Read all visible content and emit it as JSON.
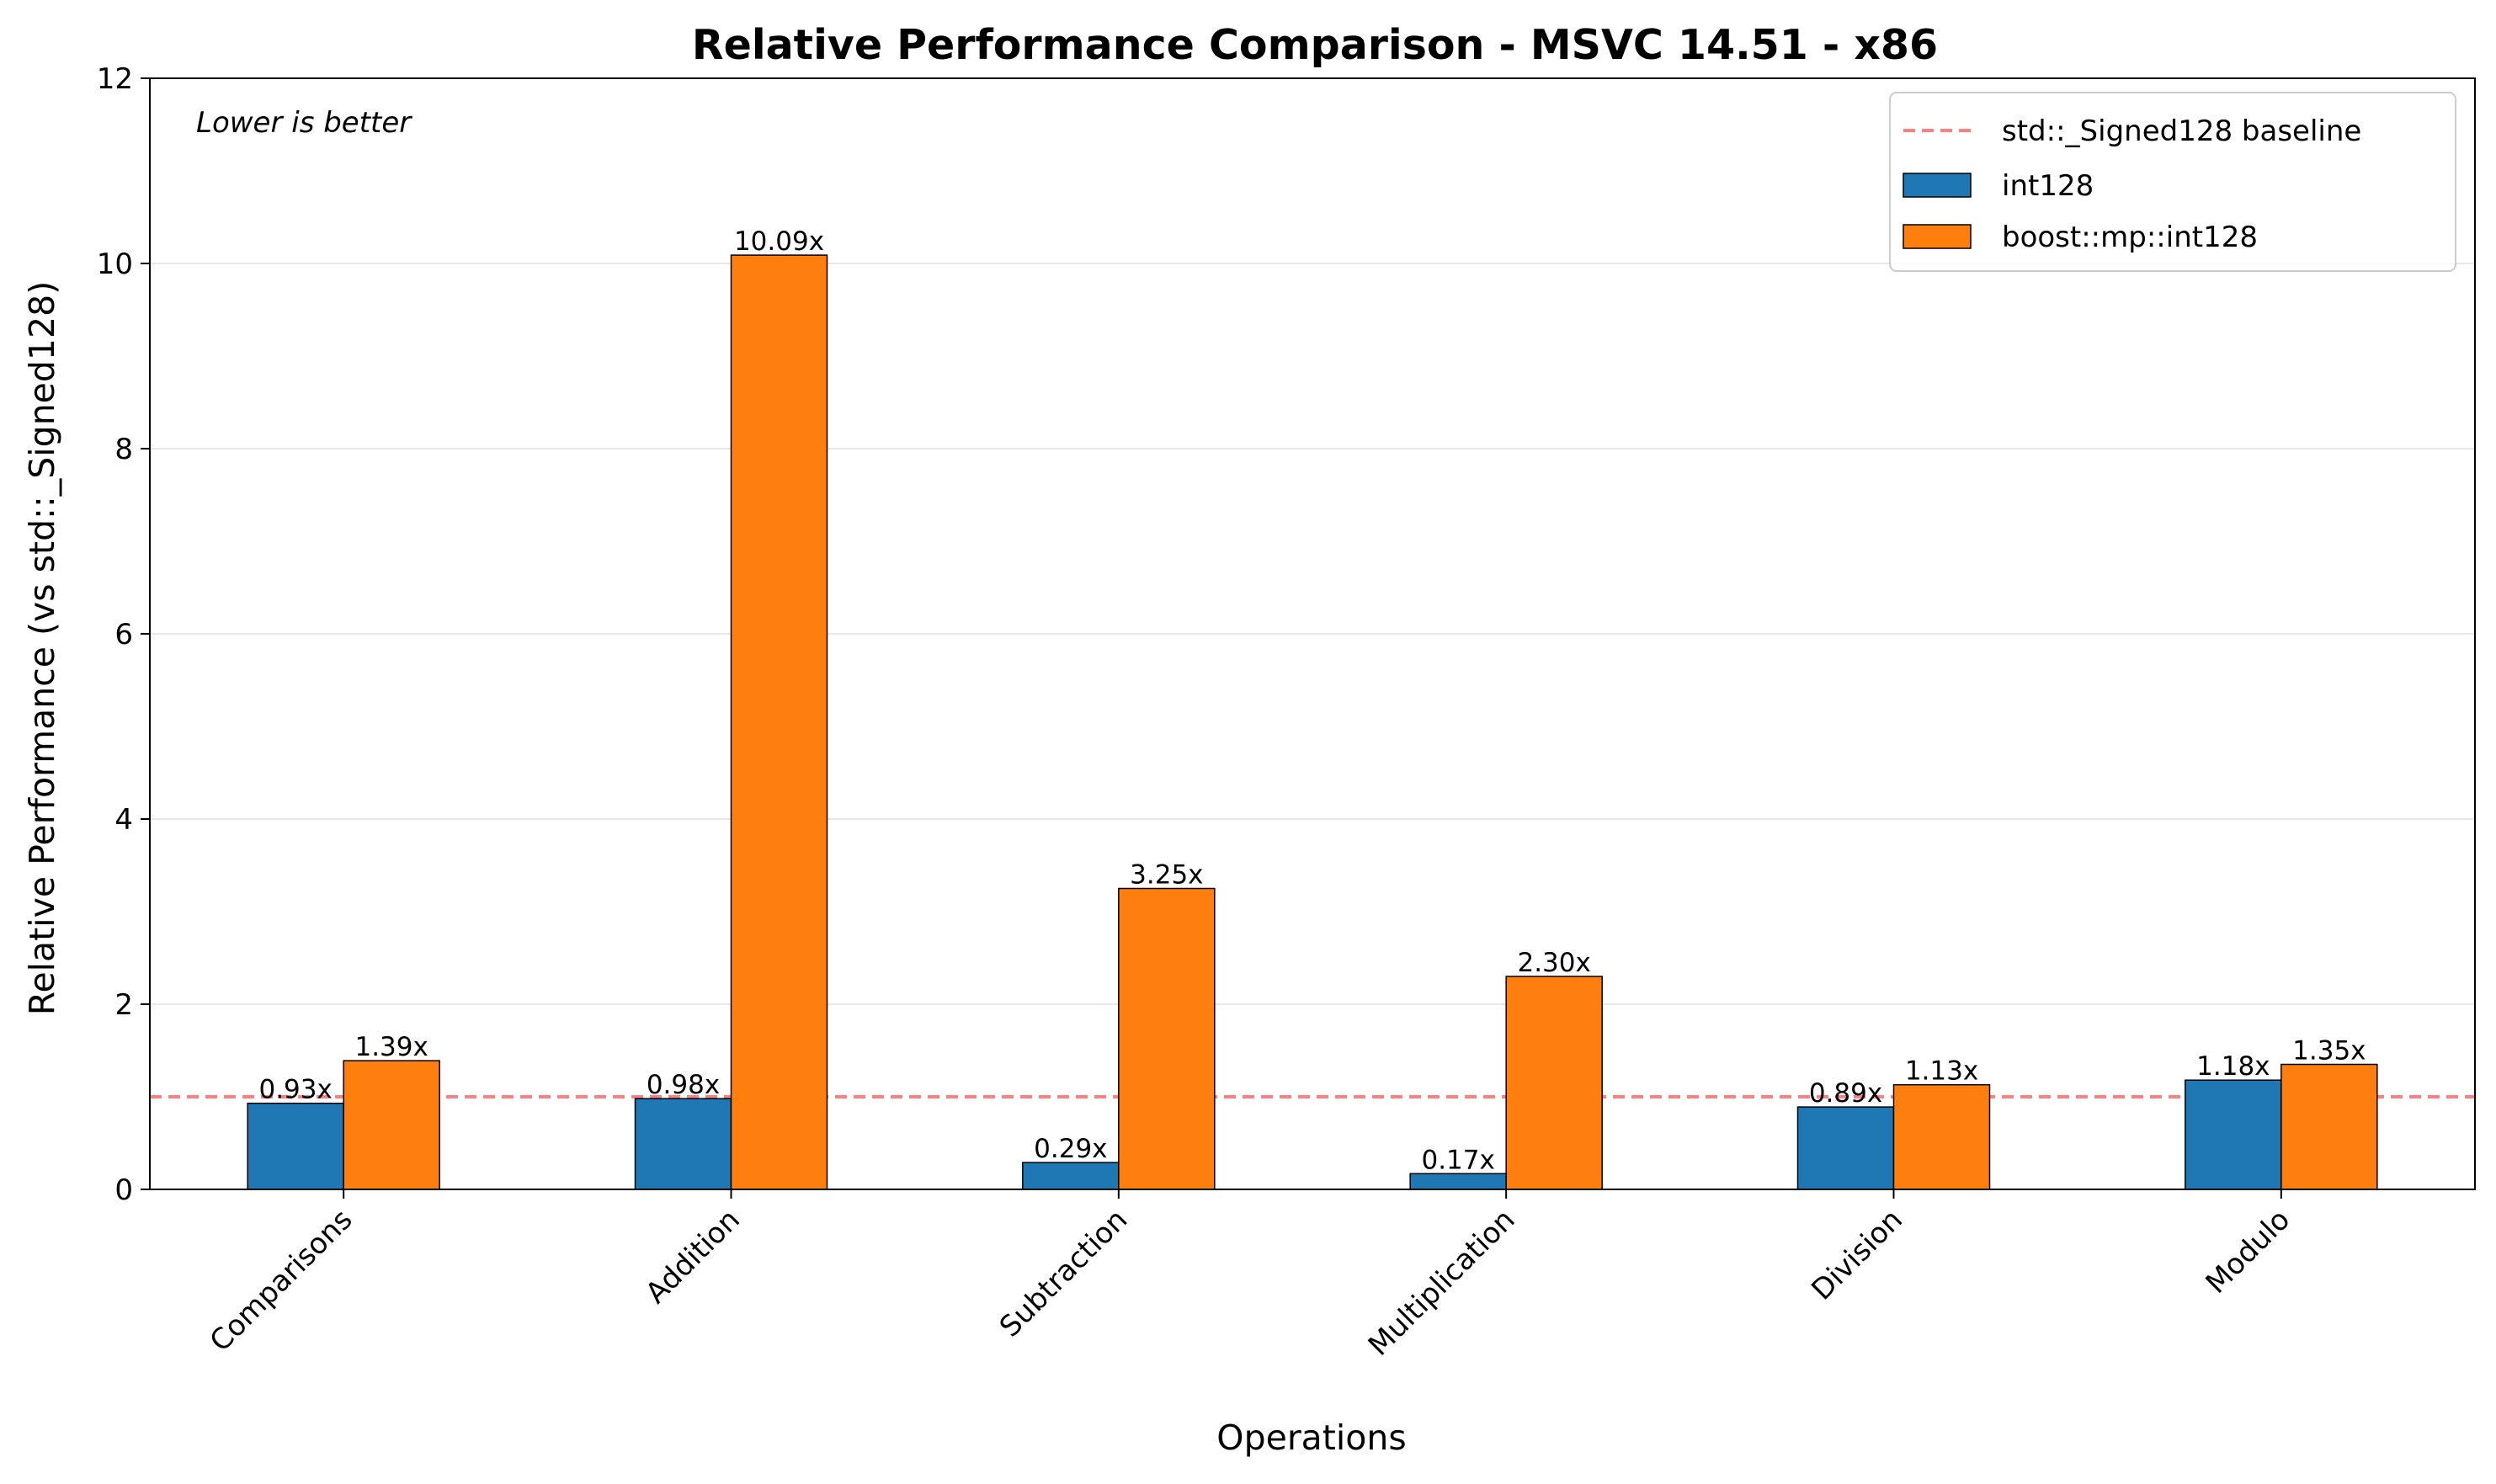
{
  "chart_data": {
    "type": "bar",
    "title": "Relative Performance Comparison - MSVC 14.51 - x86",
    "xlabel": "Operations",
    "ylabel": "Relative Performance (vs std::_Signed128)",
    "annotation": "Lower is better",
    "categories": [
      "Comparisons",
      "Addition",
      "Subtraction",
      "Multiplication",
      "Division",
      "Modulo"
    ],
    "series": [
      {
        "name": "int128",
        "color": "#1f77b4",
        "values": [
          0.93,
          0.98,
          0.29,
          0.17,
          0.89,
          1.18
        ],
        "labels": [
          "0.93x",
          "0.98x",
          "0.29x",
          "0.17x",
          "0.89x",
          "1.18x"
        ]
      },
      {
        "name": "boost::mp::int128",
        "color": "#ff7f0e",
        "values": [
          1.39,
          10.09,
          3.25,
          2.3,
          1.13,
          1.35
        ],
        "labels": [
          "1.39x",
          "10.09x",
          "3.25x",
          "2.30x",
          "1.13x",
          "1.35x"
        ]
      }
    ],
    "baseline": {
      "name": "std::_Signed128 baseline",
      "value": 1.0,
      "color": "#ff0000",
      "style": "dashed"
    },
    "ylim": [
      0,
      12
    ],
    "yticks": [
      0,
      2,
      4,
      6,
      8,
      10,
      12
    ],
    "grid": "horizontal",
    "legend_position": "top-right"
  }
}
